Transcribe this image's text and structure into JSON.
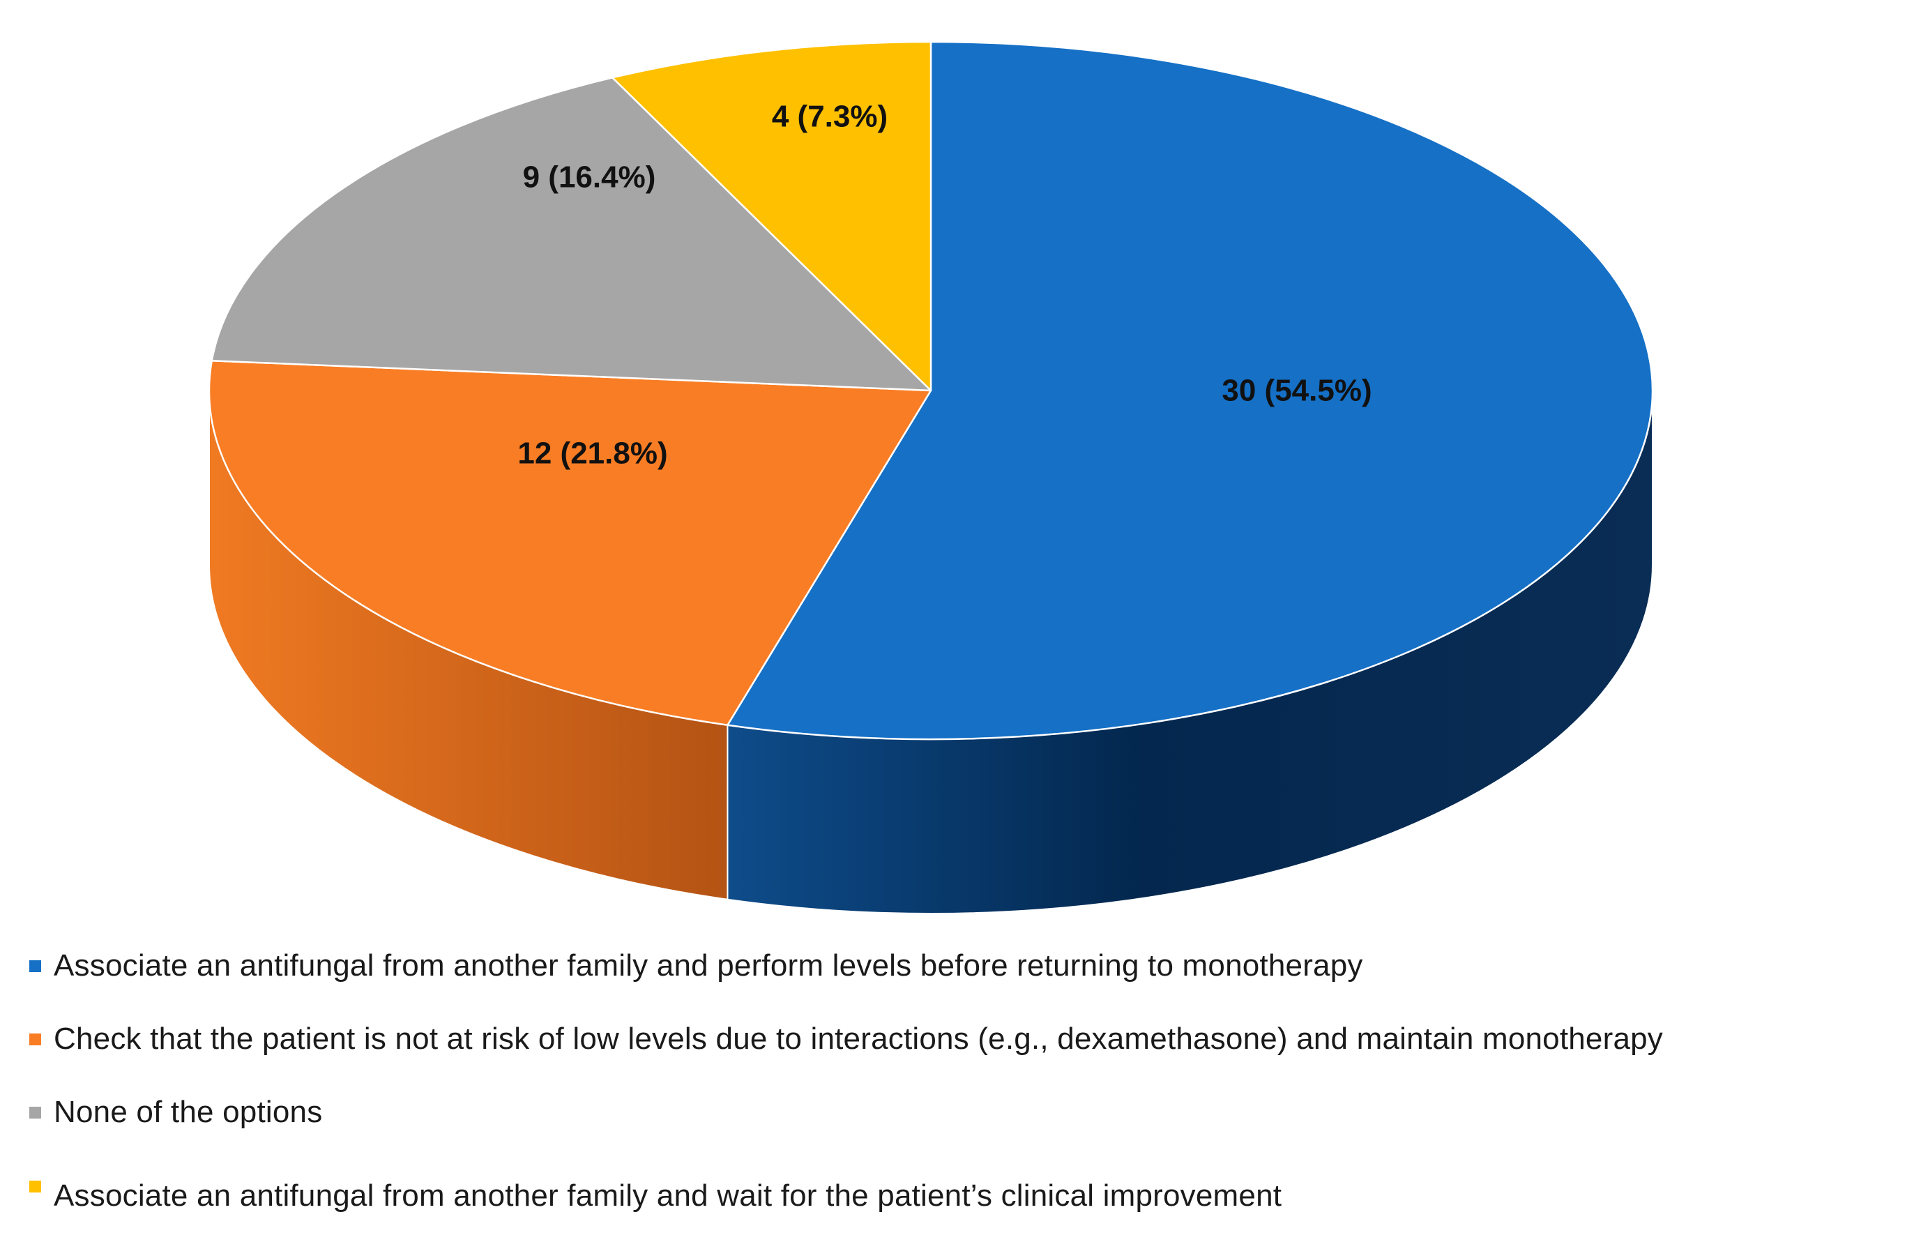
{
  "chart_data": {
    "type": "pie",
    "style": "3d",
    "title": "",
    "slices": [
      {
        "name": "Associate an antifungal from another family and perform levels before returning to monotherapy",
        "value": 30,
        "percent": 54.5,
        "label": "30 (54.5%)",
        "color": "#1570C6"
      },
      {
        "name": "Check that the patient is not at risk of low levels due to interactions (e.g., dexamethasone) and maintain monotherapy",
        "value": 12,
        "percent": 21.8,
        "label": "12 (21.8%)",
        "color": "#F97D24"
      },
      {
        "name": "None of the options",
        "value": 9,
        "percent": 16.4,
        "label": "9 (16.4%)",
        "color": "#A6A6A6"
      },
      {
        "name": "Associate an antifungal from another family and wait for the patient’s clinical improvement",
        "value": 4,
        "percent": 7.3,
        "label": "4 (7.3%)",
        "color": "#FFC000"
      }
    ],
    "legend_position": "bottom"
  }
}
